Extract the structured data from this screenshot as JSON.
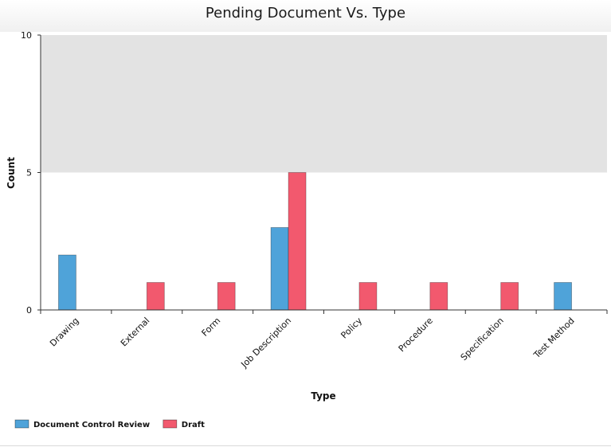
{
  "chart_data": {
    "type": "bar",
    "title": "Pending Document Vs. Type",
    "xlabel": "Type",
    "ylabel": "Count",
    "categories": [
      "Drawing",
      "External",
      "Form",
      "Job Description",
      "Policy",
      "Procedure",
      "Specification",
      "Test Method"
    ],
    "series": [
      {
        "name": "Document Control Review",
        "color": "#4fa3d9",
        "values": [
          2,
          0,
          0,
          3,
          0,
          0,
          0,
          1
        ]
      },
      {
        "name": "Draft",
        "color": "#f2596e",
        "values": [
          0,
          1,
          1,
          5,
          1,
          1,
          1,
          0
        ]
      }
    ],
    "ylim": [
      0,
      10
    ],
    "yticks": [
      0,
      5,
      10
    ],
    "shaded_band": [
      5,
      10
    ],
    "shaded_band_color": "#e3e3e3",
    "legend": "bottom-left",
    "grid": false
  }
}
